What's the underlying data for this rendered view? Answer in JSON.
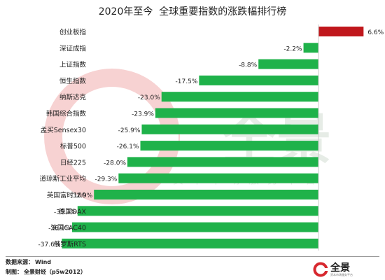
{
  "title": "2020年至今  全球重要指数的涨跌幅排行榜",
  "colors": {
    "positive": "#c0171c",
    "negative": "#1fb24a",
    "axis": "#c8c8c8",
    "watermark_ring": "#f7d2d2",
    "watermark_text": "#e6ece6",
    "brand_red": "#d7282f"
  },
  "chart_data": {
    "type": "bar",
    "orientation": "horizontal",
    "categories": [
      "创业板指",
      "深证成指",
      "上证指数",
      "恒生指数",
      "纳斯达克",
      "韩国综合指数",
      "孟买Sensex30",
      "标普500",
      "日经225",
      "道琼斯工业平均",
      "英国富时100",
      "德国DAX",
      "法国CAC40",
      "俄罗斯RTS"
    ],
    "values": [
      6.6,
      -2.2,
      -8.8,
      -17.5,
      -23.0,
      -23.9,
      -25.9,
      -26.1,
      -28.0,
      -29.3,
      -32.9,
      -35.3,
      -36.1,
      -37.6
    ],
    "value_labels": [
      "6.6%",
      "-2.2%",
      "-8.8%",
      "-17.5%",
      "-23.0%",
      "-23.9%",
      "-25.9%",
      "-26.1%",
      "-28.0%",
      "-29.3%",
      "-32.9%",
      "-35.3%",
      "-36.1%",
      "-37.6%"
    ],
    "xlim": [
      -40,
      8
    ],
    "grid": false,
    "legend": "none"
  },
  "watermark": {
    "brand": "全景",
    "tagline": "资本市场服务平台"
  },
  "footer": {
    "source_label": "数据来源：",
    "source_value": "Wind",
    "maker_label": "制图：",
    "maker_value": "全景财经（p5w2012）"
  },
  "brand": {
    "name": "全景",
    "subtitle": "资本市场服务平台"
  }
}
